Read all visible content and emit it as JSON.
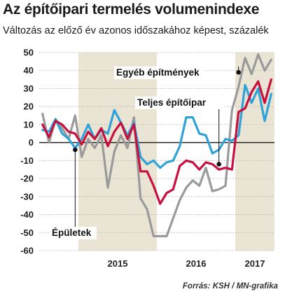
{
  "title": "Az építőipari termelés  volumenindexe",
  "subtitle": "Változás az előző év azonos időszakához képest, százalék",
  "source": "Forrás: KSH / MN-grafika",
  "chart_data": {
    "type": "line",
    "ylim": [
      -60,
      50
    ],
    "yticks": [
      -60,
      -50,
      -40,
      -30,
      -20,
      -10,
      0,
      10,
      20,
      30,
      40,
      50
    ],
    "x_range": [
      "2014-07",
      "2017-06"
    ],
    "shaded_years": [
      "2015",
      "2017"
    ],
    "year_labels": [
      "2015",
      "2016",
      "2017"
    ],
    "grid": true,
    "colors": {
      "shade": "#e9e4d4",
      "grid": "#bdb8a8",
      "zero": "#222222",
      "total": "#c8103e",
      "buildings": "#2fa3d8",
      "other": "#9a9a9a"
    },
    "x": [
      "2014-07",
      "2014-08",
      "2014-09",
      "2014-10",
      "2014-11",
      "2014-12",
      "2015-01",
      "2015-02",
      "2015-03",
      "2015-04",
      "2015-05",
      "2015-06",
      "2015-07",
      "2015-08",
      "2015-09",
      "2015-10",
      "2015-11",
      "2015-12",
      "2016-01",
      "2016-02",
      "2016-03",
      "2016-04",
      "2016-05",
      "2016-06",
      "2016-07",
      "2016-08",
      "2016-09",
      "2016-10",
      "2016-11",
      "2016-12",
      "2017-01",
      "2017-02",
      "2017-03",
      "2017-04",
      "2017-05",
      "2017-06"
    ],
    "series": [
      {
        "key": "other",
        "name": "Egyéb építmények",
        "values": [
          16,
          0,
          13,
          8,
          2,
          15,
          -8,
          2,
          -3,
          4,
          -25,
          -5,
          4,
          -3,
          14,
          -31,
          -37,
          -52,
          -52,
          -52,
          -42,
          -32,
          -25,
          -21,
          -24,
          -14,
          -27,
          -26,
          -24,
          18,
          31,
          47,
          38,
          49,
          40,
          46
        ]
      },
      {
        "key": "buildings",
        "name": "Épületek",
        "values": [
          7,
          6,
          13,
          5,
          2,
          -3,
          2,
          10,
          2,
          7,
          5,
          18,
          11,
          4,
          11,
          -8,
          -12,
          -10,
          -14,
          -11,
          -10,
          -2,
          14,
          14,
          5,
          4,
          -6,
          -4,
          2,
          1,
          4,
          32,
          22,
          30,
          12,
          27
        ]
      },
      {
        "key": "total",
        "name": "Teljes építőipar",
        "values": [
          10,
          3,
          12,
          10,
          6,
          5,
          -1,
          6,
          2,
          8,
          -2,
          6,
          11,
          2,
          10,
          -16,
          -16,
          -24,
          -34,
          -28,
          -26,
          -13,
          -10,
          -11,
          -15,
          -11,
          -12,
          -15,
          -14,
          -15,
          17,
          19,
          28,
          34,
          22,
          35
        ]
      }
    ],
    "annotations": [
      {
        "text": "Egyéb építmények",
        "series": "other",
        "at": "2017-01",
        "value": 39
      },
      {
        "text": "Teljes építőipar",
        "series": "total",
        "at": "2016-10",
        "value": -12
      },
      {
        "text": "Épületek",
        "series": "buildings",
        "at": "2014-12",
        "value": -4
      }
    ]
  }
}
